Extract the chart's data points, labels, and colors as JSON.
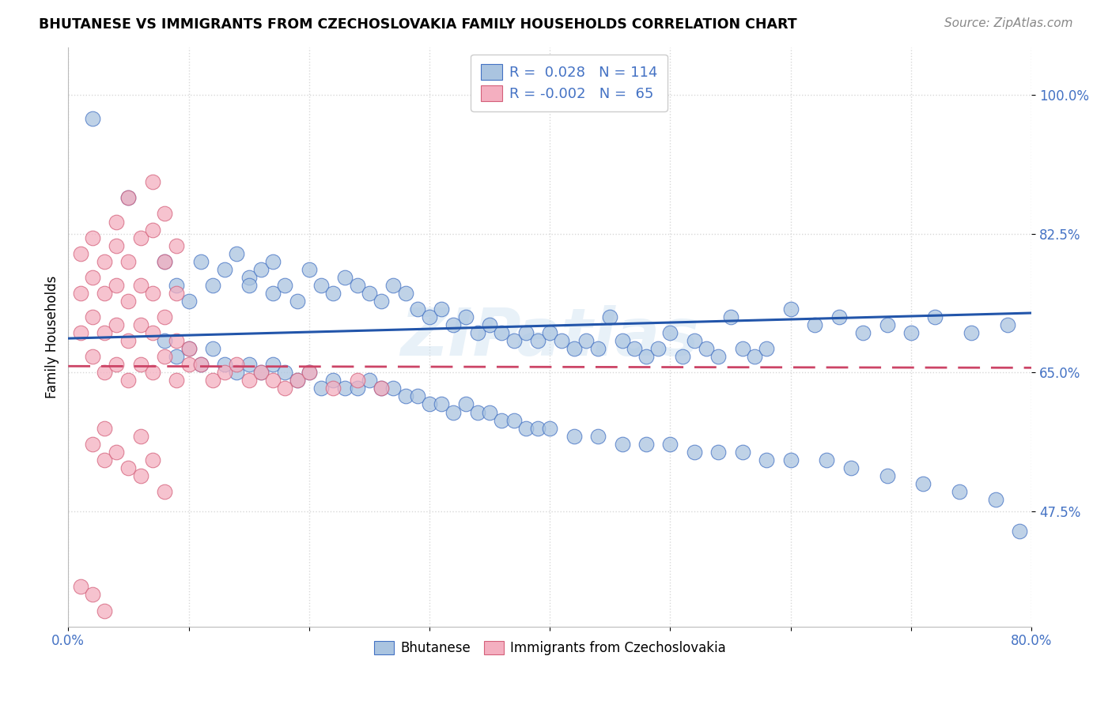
{
  "title": "BHUTANESE VS IMMIGRANTS FROM CZECHOSLOVAKIA FAMILY HOUSEHOLDS CORRELATION CHART",
  "source": "Source: ZipAtlas.com",
  "ylabel": "Family Households",
  "x_min": 0.0,
  "x_max": 0.8,
  "y_min": 0.33,
  "y_max": 1.06,
  "y_ticks": [
    0.475,
    0.65,
    0.825,
    1.0
  ],
  "y_tick_labels": [
    "47.5%",
    "65.0%",
    "82.5%",
    "100.0%"
  ],
  "x_ticks": [
    0.0,
    0.1,
    0.2,
    0.3,
    0.4,
    0.5,
    0.6,
    0.7,
    0.8
  ],
  "x_tick_labels": [
    "0.0%",
    "",
    "",
    "",
    "",
    "",
    "",
    "",
    "80.0%"
  ],
  "blue_color": "#aac4e0",
  "pink_color": "#f4afc0",
  "blue_edge_color": "#4472c4",
  "pink_edge_color": "#d4607a",
  "blue_line_color": "#2255aa",
  "pink_line_color": "#cc4466",
  "tick_color": "#4472c4",
  "R_blue": 0.028,
  "N_blue": 114,
  "R_pink": -0.002,
  "N_pink": 65,
  "blue_line_x0": 0.0,
  "blue_line_y0": 0.693,
  "blue_line_x1": 0.8,
  "blue_line_y1": 0.725,
  "pink_line_x0": 0.0,
  "pink_line_y0": 0.658,
  "pink_line_x1": 0.8,
  "pink_line_y1": 0.656,
  "blue_scatter_x": [
    0.02,
    0.05,
    0.08,
    0.09,
    0.1,
    0.11,
    0.12,
    0.13,
    0.14,
    0.15,
    0.15,
    0.16,
    0.17,
    0.17,
    0.18,
    0.19,
    0.2,
    0.21,
    0.22,
    0.23,
    0.24,
    0.25,
    0.26,
    0.27,
    0.28,
    0.29,
    0.3,
    0.31,
    0.32,
    0.33,
    0.34,
    0.35,
    0.36,
    0.37,
    0.38,
    0.39,
    0.4,
    0.41,
    0.42,
    0.43,
    0.44,
    0.45,
    0.46,
    0.47,
    0.48,
    0.49,
    0.5,
    0.51,
    0.52,
    0.53,
    0.54,
    0.55,
    0.56,
    0.57,
    0.58,
    0.6,
    0.62,
    0.64,
    0.66,
    0.68,
    0.7,
    0.72,
    0.75,
    0.78,
    0.08,
    0.09,
    0.1,
    0.11,
    0.12,
    0.13,
    0.14,
    0.15,
    0.16,
    0.17,
    0.18,
    0.19,
    0.2,
    0.21,
    0.22,
    0.23,
    0.24,
    0.25,
    0.26,
    0.27,
    0.28,
    0.29,
    0.3,
    0.31,
    0.32,
    0.33,
    0.34,
    0.35,
    0.36,
    0.37,
    0.38,
    0.39,
    0.4,
    0.42,
    0.44,
    0.46,
    0.48,
    0.5,
    0.52,
    0.54,
    0.56,
    0.58,
    0.6,
    0.63,
    0.65,
    0.68,
    0.71,
    0.74,
    0.77,
    0.79
  ],
  "blue_scatter_y": [
    0.97,
    0.87,
    0.79,
    0.76,
    0.74,
    0.79,
    0.76,
    0.78,
    0.8,
    0.77,
    0.76,
    0.78,
    0.75,
    0.79,
    0.76,
    0.74,
    0.78,
    0.76,
    0.75,
    0.77,
    0.76,
    0.75,
    0.74,
    0.76,
    0.75,
    0.73,
    0.72,
    0.73,
    0.71,
    0.72,
    0.7,
    0.71,
    0.7,
    0.69,
    0.7,
    0.69,
    0.7,
    0.69,
    0.68,
    0.69,
    0.68,
    0.72,
    0.69,
    0.68,
    0.67,
    0.68,
    0.7,
    0.67,
    0.69,
    0.68,
    0.67,
    0.72,
    0.68,
    0.67,
    0.68,
    0.73,
    0.71,
    0.72,
    0.7,
    0.71,
    0.7,
    0.72,
    0.7,
    0.71,
    0.69,
    0.67,
    0.68,
    0.66,
    0.68,
    0.66,
    0.65,
    0.66,
    0.65,
    0.66,
    0.65,
    0.64,
    0.65,
    0.63,
    0.64,
    0.63,
    0.63,
    0.64,
    0.63,
    0.63,
    0.62,
    0.62,
    0.61,
    0.61,
    0.6,
    0.61,
    0.6,
    0.6,
    0.59,
    0.59,
    0.58,
    0.58,
    0.58,
    0.57,
    0.57,
    0.56,
    0.56,
    0.56,
    0.55,
    0.55,
    0.55,
    0.54,
    0.54,
    0.54,
    0.53,
    0.52,
    0.51,
    0.5,
    0.49,
    0.45
  ],
  "pink_scatter_x": [
    0.01,
    0.01,
    0.01,
    0.02,
    0.02,
    0.02,
    0.02,
    0.03,
    0.03,
    0.03,
    0.03,
    0.04,
    0.04,
    0.04,
    0.04,
    0.05,
    0.05,
    0.05,
    0.05,
    0.06,
    0.06,
    0.06,
    0.07,
    0.07,
    0.07,
    0.08,
    0.08,
    0.09,
    0.09,
    0.1,
    0.1,
    0.11,
    0.12,
    0.13,
    0.14,
    0.15,
    0.16,
    0.17,
    0.18,
    0.19,
    0.2,
    0.22,
    0.24,
    0.26,
    0.04,
    0.05,
    0.06,
    0.07,
    0.07,
    0.08,
    0.08,
    0.09,
    0.09,
    0.02,
    0.03,
    0.03,
    0.04,
    0.05,
    0.06,
    0.06,
    0.07,
    0.08,
    0.01,
    0.02,
    0.03
  ],
  "pink_scatter_y": [
    0.7,
    0.75,
    0.8,
    0.67,
    0.72,
    0.77,
    0.82,
    0.65,
    0.7,
    0.75,
    0.79,
    0.66,
    0.71,
    0.76,
    0.81,
    0.64,
    0.69,
    0.74,
    0.79,
    0.66,
    0.71,
    0.76,
    0.65,
    0.7,
    0.75,
    0.67,
    0.72,
    0.64,
    0.69,
    0.66,
    0.68,
    0.66,
    0.64,
    0.65,
    0.66,
    0.64,
    0.65,
    0.64,
    0.63,
    0.64,
    0.65,
    0.63,
    0.64,
    0.63,
    0.84,
    0.87,
    0.82,
    0.89,
    0.83,
    0.85,
    0.79,
    0.81,
    0.75,
    0.56,
    0.58,
    0.54,
    0.55,
    0.53,
    0.57,
    0.52,
    0.54,
    0.5,
    0.38,
    0.37,
    0.35
  ],
  "background_color": "#ffffff",
  "grid_color": "#d8d8d8"
}
